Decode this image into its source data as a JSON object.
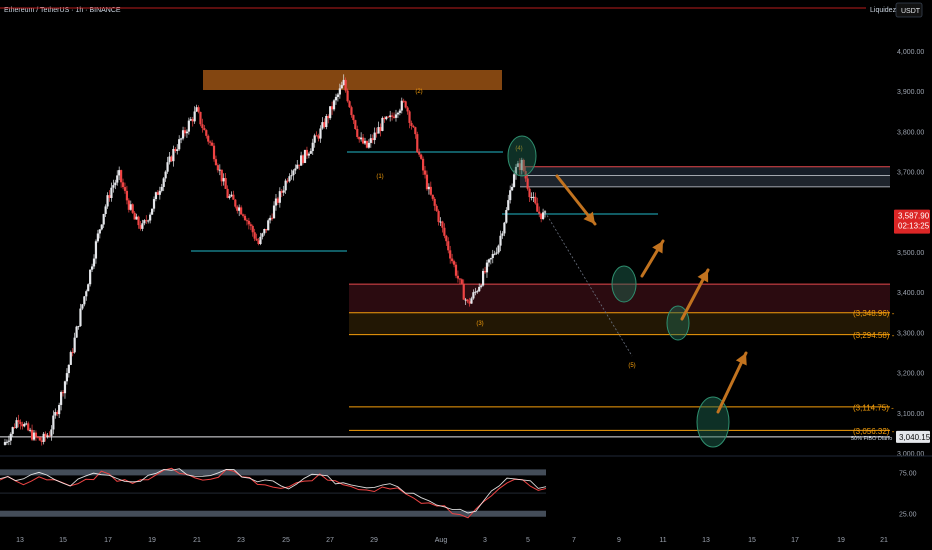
{
  "header": {
    "symbol_text": "Ethereum / TetherUS · 1h · BINANCE",
    "liquidez_label": "Liquidez",
    "currency_badge": "USDT"
  },
  "chart_data": {
    "type": "candlestick",
    "title": "Ethereum / TetherUS · 1h · BINANCE",
    "ylim": [
      3000,
      4050
    ],
    "y_ticks": [
      "4,000.00",
      "3,900.00",
      "3,800.00",
      "3,700.00",
      "3,600.00",
      "3,500.00",
      "3,400.00",
      "3,300.00",
      "3,200.00",
      "3,100.00",
      "3,000.00"
    ],
    "y_tick_values": [
      4000,
      3900,
      3800,
      3700,
      3600,
      3500,
      3400,
      3300,
      3200,
      3100,
      3000
    ],
    "x_ticks": [
      "13",
      "15",
      "17",
      "19",
      "21",
      "23",
      "25",
      "27",
      "29",
      "Aug",
      "3",
      "5",
      "7",
      "9",
      "11",
      "13",
      "15",
      "17",
      "19",
      "21"
    ],
    "current_price": "3,587.90",
    "countdown": "02:13:25",
    "price_path": [
      3020,
      3050,
      3090,
      3060,
      3040,
      3030,
      3050,
      3110,
      3180,
      3260,
      3350,
      3430,
      3520,
      3600,
      3660,
      3690,
      3630,
      3580,
      3560,
      3600,
      3650,
      3700,
      3750,
      3780,
      3820,
      3850,
      3800,
      3760,
      3700,
      3640,
      3620,
      3600,
      3560,
      3520,
      3560,
      3610,
      3650,
      3700,
      3720,
      3740,
      3770,
      3800,
      3840,
      3880,
      3920,
      3850,
      3780,
      3760,
      3790,
      3820,
      3830,
      3860,
      3870,
      3800,
      3720,
      3650,
      3600,
      3540,
      3480,
      3420,
      3370,
      3400,
      3440,
      3480,
      3520,
      3600,
      3700,
      3720,
      3650,
      3600,
      3588
    ],
    "levels": [
      {
        "price": 3348.96,
        "label": "(3,348.96)",
        "color": "#f59e0b"
      },
      {
        "price": 3294.58,
        "label": "(3,294.58)",
        "color": "#f59e0b"
      },
      {
        "price": 3114.75,
        "label": "(3,114.75)",
        "color": "#f59e0b"
      },
      {
        "price": 3056.32,
        "label": "(3,056.32)",
        "color": "#f59e0b"
      },
      {
        "price": 3040.15,
        "label": "3,040.15",
        "color": "#e5e7eb"
      }
    ],
    "fib_label": "50% FIBO Diario",
    "wave_labels": [
      "(1)",
      "(2)",
      "(3)",
      "(4)",
      "(5)"
    ],
    "oscillator": {
      "ticks": [
        "75.00",
        "25.00"
      ],
      "tick_values": [
        75,
        25
      ],
      "ylim": [
        15,
        90
      ],
      "values": [
        70,
        72,
        68,
        66,
        70,
        74,
        69,
        65,
        62,
        60,
        64,
        68,
        72,
        75,
        73,
        70,
        66,
        62,
        65,
        70,
        72,
        76,
        80,
        78,
        74,
        70,
        68,
        72,
        75,
        78,
        76,
        72,
        70,
        66,
        64,
        62,
        60,
        58,
        62,
        66,
        70,
        72,
        68,
        64,
        60,
        62,
        58,
        54,
        56,
        58,
        60,
        56,
        52,
        48,
        42,
        38,
        36,
        34,
        30,
        28,
        26,
        30,
        40,
        52,
        60,
        66,
        70,
        68,
        62,
        58,
        60
      ]
    }
  },
  "colors": {
    "background": "#000000",
    "bull": "#e5e7eb",
    "bear": "#ef4444",
    "cyan": "#22b8c9",
    "orange_zone": "#8a4a12",
    "red_line": "#e5484d",
    "orange_line": "#f59e0b",
    "teal_circle": "#1f6b54",
    "arrow": "#c2731f",
    "osc_line_a": "#ffffff",
    "osc_line_b": "#ef4444",
    "band": "#4b5563"
  }
}
